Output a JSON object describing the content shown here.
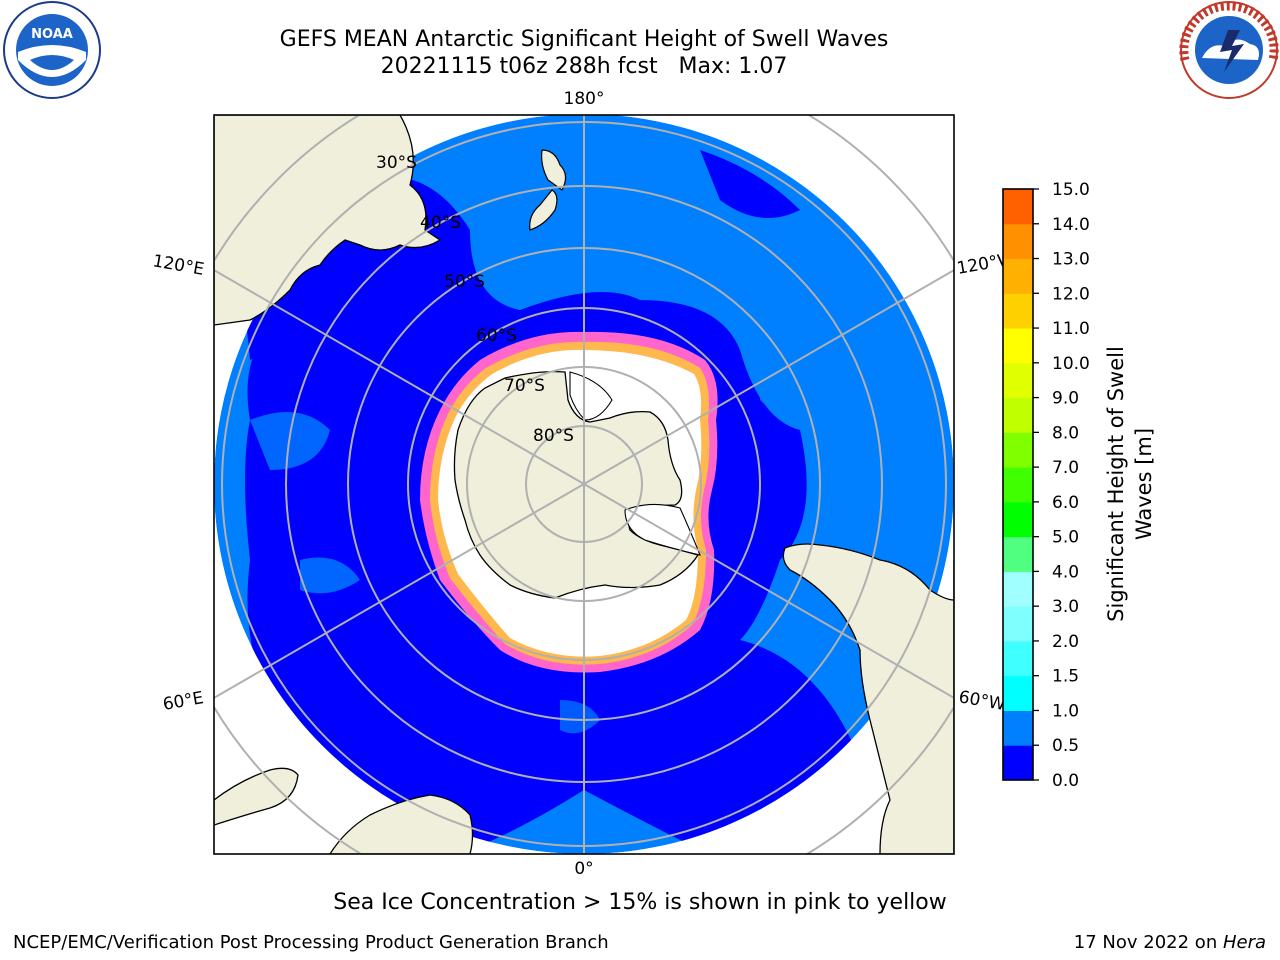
{
  "header": {
    "title_line1": "GEFS MEAN Antarctic Significant Height of Swell Waves",
    "title_line2": "20221115 t06z 288h fcst   Max: 1.07"
  },
  "logos": {
    "left": {
      "name": "noaa-logo",
      "text": "NOAA"
    },
    "right": {
      "name": "national-weather-service-logo",
      "text": "NATIONAL WEATHER SERVICE"
    }
  },
  "map": {
    "projection": "south-polar-stereographic",
    "colors": {
      "ocean_low": "#0000ff",
      "ocean_mid": "#0080ff",
      "land": "#efefdc",
      "ice": "#ffffff",
      "grid": "#b0b0b0"
    },
    "lon_labels": [
      {
        "id": "lon-180",
        "text": "180°"
      },
      {
        "id": "lon-120e",
        "text": "120°E"
      },
      {
        "id": "lon-120w",
        "text": "120°W"
      },
      {
        "id": "lon-60e",
        "text": "60°E"
      },
      {
        "id": "lon-60w",
        "text": "60°W"
      },
      {
        "id": "lon-0",
        "text": "0°"
      }
    ],
    "lat_labels": [
      {
        "id": "lat-30s",
        "text": "30°S"
      },
      {
        "id": "lat-40s",
        "text": "40°S"
      },
      {
        "id": "lat-50s",
        "text": "50°S"
      },
      {
        "id": "lat-60s",
        "text": "60°S"
      },
      {
        "id": "lat-70s",
        "text": "70°S"
      },
      {
        "id": "lat-80s",
        "text": "80°S"
      }
    ]
  },
  "colorbar": {
    "label_line1": "Significant Height of Swell",
    "label_line2": "Waves [m]",
    "ticks": [
      "0.0",
      "0.5",
      "1.0",
      "1.5",
      "2.0",
      "3.0",
      "4.0",
      "5.0",
      "6.0",
      "7.0",
      "8.0",
      "9.0",
      "10.0",
      "11.0",
      "12.0",
      "13.0",
      "14.0",
      "15.0"
    ],
    "colors": [
      "#0000ff",
      "#0080ff",
      "#00ffff",
      "#40ffff",
      "#80ffff",
      "#a0ffff",
      "#50ff80",
      "#00ff00",
      "#40ff00",
      "#80ff00",
      "#c0ff00",
      "#e0ff00",
      "#ffff00",
      "#ffd000",
      "#ffb000",
      "#ff9000",
      "#ff6000",
      "#ff3000",
      "#ff0000"
    ]
  },
  "caption": "Sea Ice Concentration > 15% is shown in pink to yellow",
  "footer": {
    "left": "NCEP/EMC/Verification Post Processing Product Generation Branch",
    "right_prefix": "17 Nov 2022 on ",
    "right_host": "Hera"
  }
}
